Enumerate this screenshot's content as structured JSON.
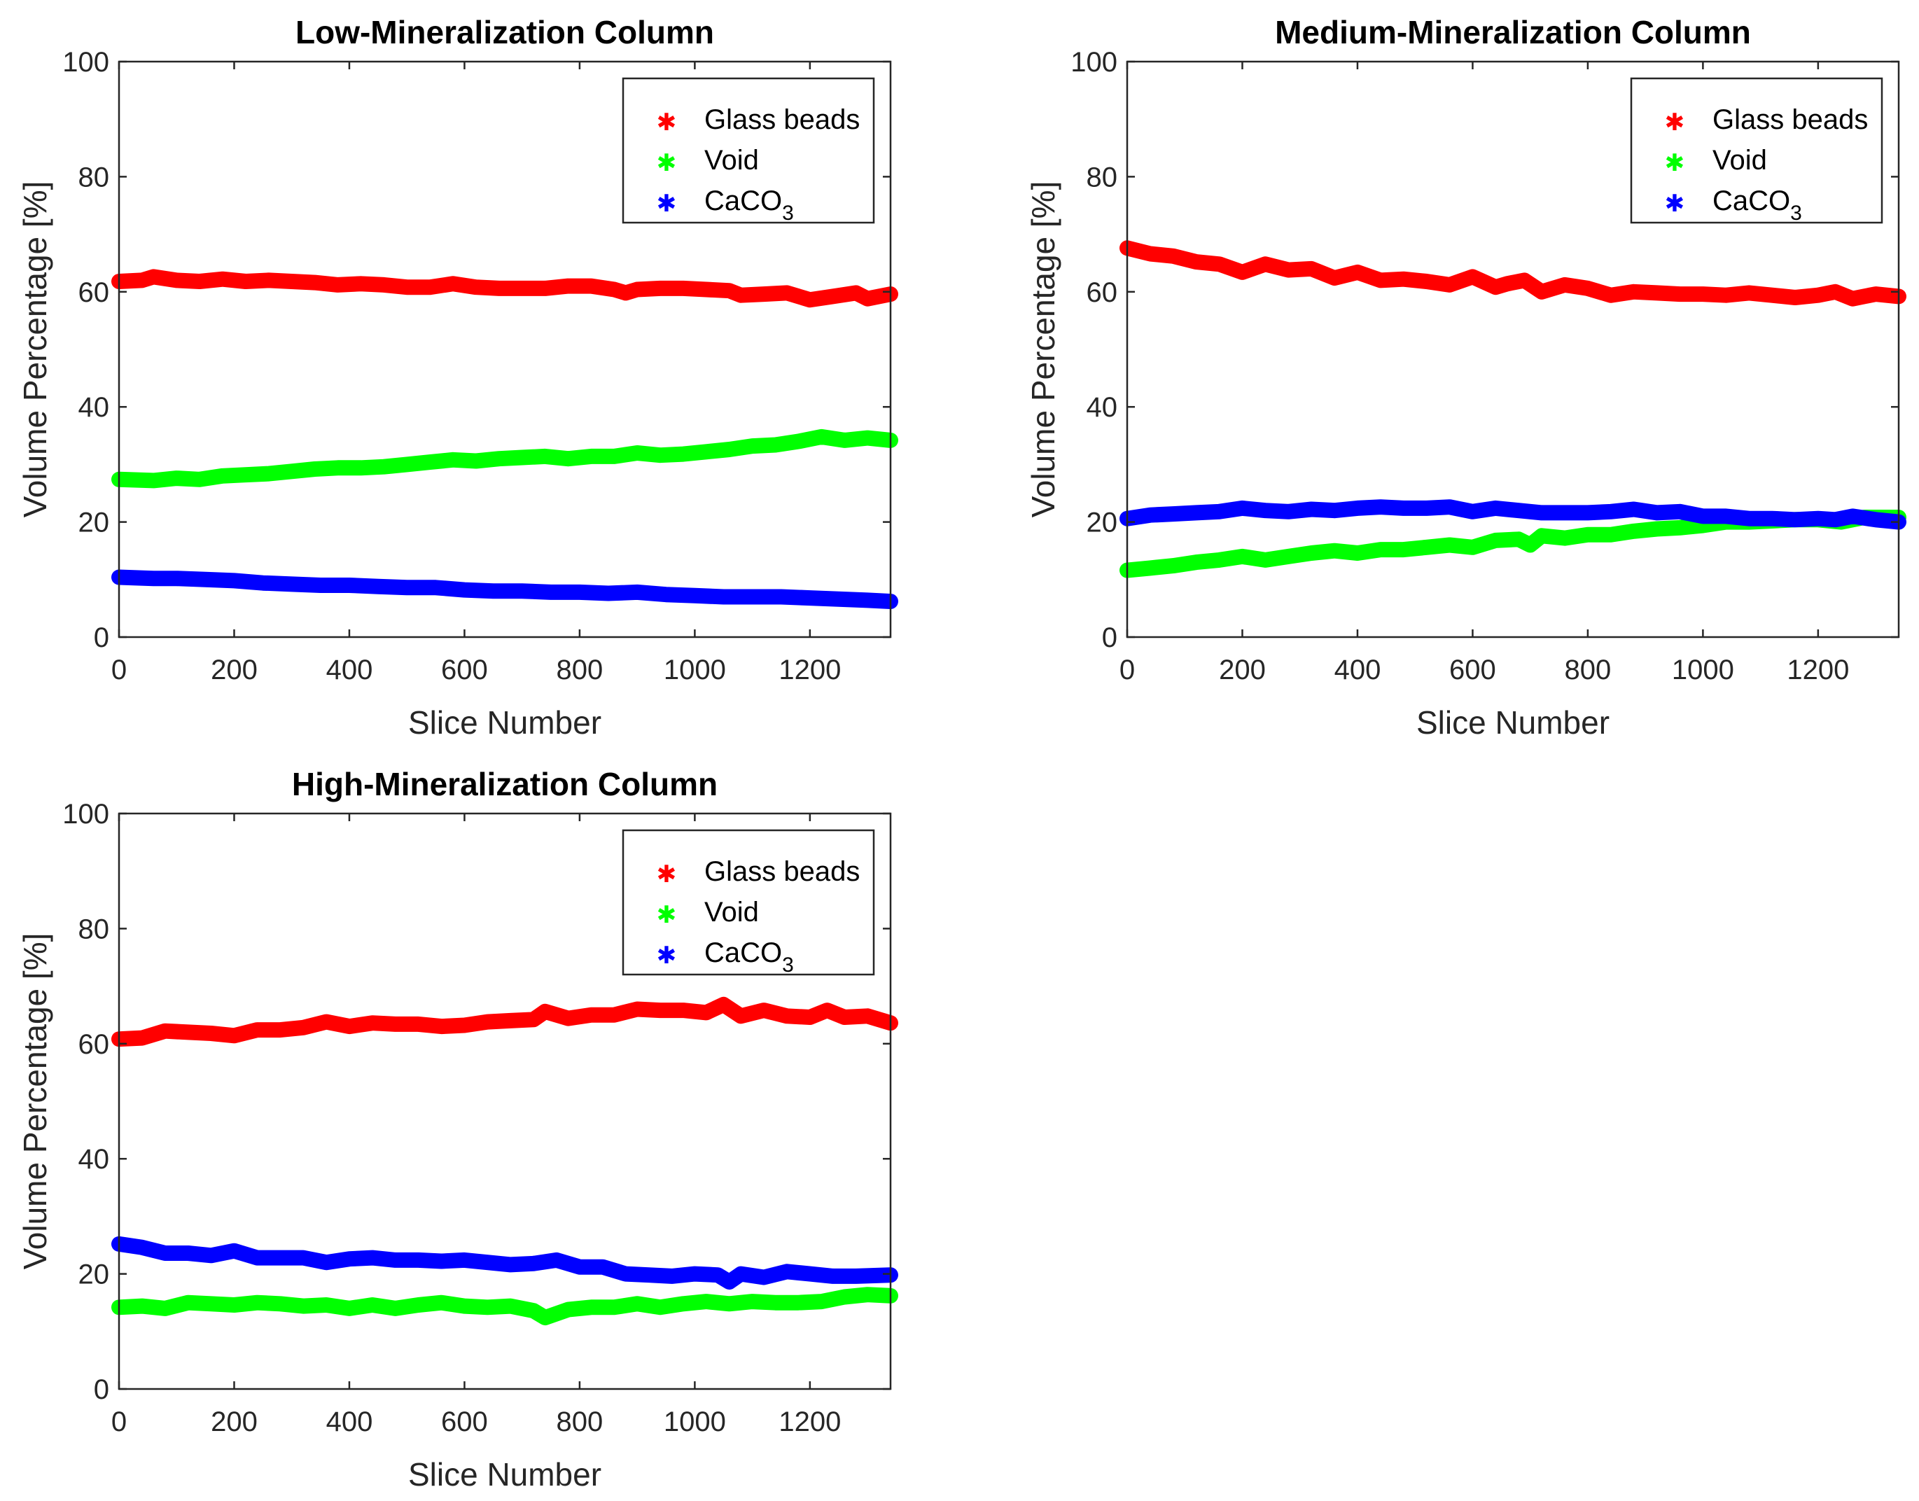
{
  "chart_data": [
    {
      "type": "scatter",
      "title": "Low-Mineralization Column",
      "xlabel": "Slice Number",
      "ylabel": "Volume Percentage [%]",
      "xlim": [
        0,
        1340
      ],
      "ylim": [
        0,
        100
      ],
      "xticks": [
        "0",
        "200",
        "400",
        "600",
        "800",
        "1000",
        "1200"
      ],
      "yticks": [
        "0",
        "20",
        "40",
        "60",
        "80",
        "100"
      ],
      "legend_position": "top-right",
      "series": [
        {
          "name": "Glass beads",
          "color": "#ff0000",
          "marker": "*",
          "x": [
            0,
            40,
            60,
            100,
            140,
            180,
            220,
            260,
            300,
            340,
            380,
            420,
            460,
            500,
            540,
            580,
            620,
            660,
            700,
            740,
            780,
            820,
            860,
            880,
            900,
            940,
            980,
            1020,
            1060,
            1080,
            1120,
            1160,
            1200,
            1240,
            1280,
            1300,
            1340
          ],
          "y": [
            61.8,
            62.0,
            62.6,
            62.0,
            61.8,
            62.2,
            61.8,
            62.0,
            61.8,
            61.6,
            61.2,
            61.4,
            61.2,
            60.8,
            60.8,
            61.4,
            60.8,
            60.6,
            60.6,
            60.6,
            61.0,
            61.0,
            60.4,
            59.8,
            60.4,
            60.6,
            60.6,
            60.4,
            60.2,
            59.4,
            59.6,
            59.8,
            58.6,
            59.2,
            59.8,
            58.8,
            59.6
          ]
        },
        {
          "name": "Void",
          "color": "#00ff00",
          "marker": "*",
          "x": [
            0,
            60,
            100,
            140,
            180,
            220,
            260,
            300,
            340,
            380,
            420,
            460,
            500,
            540,
            580,
            620,
            660,
            700,
            740,
            780,
            820,
            860,
            900,
            940,
            980,
            1020,
            1060,
            1100,
            1140,
            1180,
            1220,
            1260,
            1300,
            1340
          ],
          "y": [
            27.4,
            27.2,
            27.6,
            27.4,
            28.0,
            28.2,
            28.4,
            28.8,
            29.2,
            29.4,
            29.4,
            29.6,
            30.0,
            30.4,
            30.8,
            30.6,
            31.0,
            31.2,
            31.4,
            31.0,
            31.4,
            31.4,
            32.0,
            31.6,
            31.8,
            32.2,
            32.6,
            33.2,
            33.4,
            34.0,
            34.8,
            34.2,
            34.6,
            34.2
          ]
        },
        {
          "name": "CaCO₃",
          "color": "#0000ff",
          "marker": "*",
          "x": [
            0,
            60,
            100,
            150,
            200,
            250,
            300,
            350,
            400,
            450,
            500,
            550,
            600,
            650,
            700,
            750,
            800,
            850,
            900,
            950,
            1000,
            1050,
            1100,
            1150,
            1200,
            1250,
            1300,
            1340
          ],
          "y": [
            10.4,
            10.2,
            10.2,
            10.0,
            9.8,
            9.4,
            9.2,
            9.0,
            9.0,
            8.8,
            8.6,
            8.6,
            8.2,
            8.0,
            8.0,
            7.8,
            7.8,
            7.6,
            7.8,
            7.4,
            7.2,
            7.0,
            7.0,
            7.0,
            6.8,
            6.6,
            6.4,
            6.2
          ]
        }
      ],
      "legend": [
        "Glass beads",
        "Void",
        "CaCO",
        "3"
      ]
    },
    {
      "type": "scatter",
      "title": "Medium-Mineralization Column",
      "xlabel": "Slice Number",
      "ylabel": "Volume Percentage [%]",
      "xlim": [
        0,
        1340
      ],
      "ylim": [
        0,
        100
      ],
      "xticks": [
        "0",
        "200",
        "400",
        "600",
        "800",
        "1000",
        "1200"
      ],
      "yticks": [
        "0",
        "20",
        "40",
        "60",
        "80",
        "100"
      ],
      "legend_position": "top-right",
      "series": [
        {
          "name": "Glass beads",
          "color": "#ff0000",
          "marker": "*",
          "x": [
            0,
            40,
            80,
            120,
            160,
            200,
            240,
            280,
            320,
            360,
            400,
            440,
            480,
            520,
            560,
            600,
            640,
            660,
            690,
            720,
            760,
            800,
            840,
            880,
            920,
            960,
            1000,
            1040,
            1080,
            1120,
            1160,
            1200,
            1230,
            1260,
            1300,
            1340
          ],
          "y": [
            67.6,
            66.6,
            66.2,
            65.2,
            64.8,
            63.4,
            64.8,
            63.8,
            64.0,
            62.4,
            63.4,
            62.0,
            62.2,
            61.8,
            61.2,
            62.6,
            60.8,
            61.4,
            62.0,
            60.0,
            61.2,
            60.6,
            59.4,
            60.0,
            59.8,
            59.6,
            59.6,
            59.4,
            59.8,
            59.4,
            59.0,
            59.4,
            60.0,
            58.8,
            59.6,
            59.2
          ]
        },
        {
          "name": "Void",
          "color": "#00ff00",
          "marker": "*",
          "x": [
            0,
            40,
            80,
            120,
            160,
            200,
            240,
            280,
            320,
            360,
            400,
            440,
            480,
            520,
            560,
            600,
            640,
            680,
            700,
            720,
            760,
            800,
            840,
            880,
            920,
            960,
            1000,
            1040,
            1080,
            1120,
            1160,
            1200,
            1240,
            1280,
            1340
          ],
          "y": [
            11.6,
            12.0,
            12.4,
            13.0,
            13.4,
            14.0,
            13.4,
            14.0,
            14.6,
            15.0,
            14.6,
            15.2,
            15.2,
            15.6,
            16.0,
            15.6,
            16.8,
            17.0,
            16.0,
            17.6,
            17.2,
            17.8,
            17.8,
            18.4,
            18.8,
            19.0,
            19.4,
            20.0,
            20.0,
            20.2,
            20.4,
            20.4,
            20.0,
            20.8,
            20.8
          ]
        },
        {
          "name": "CaCO₃",
          "color": "#0000ff",
          "marker": "*",
          "x": [
            0,
            40,
            80,
            120,
            160,
            200,
            240,
            280,
            320,
            360,
            400,
            440,
            480,
            520,
            560,
            600,
            640,
            680,
            720,
            760,
            800,
            840,
            880,
            920,
            960,
            1000,
            1040,
            1080,
            1120,
            1160,
            1200,
            1230,
            1260,
            1300,
            1340
          ],
          "y": [
            20.6,
            21.2,
            21.4,
            21.6,
            21.8,
            22.4,
            22.0,
            21.8,
            22.2,
            22.0,
            22.4,
            22.6,
            22.4,
            22.4,
            22.6,
            21.8,
            22.4,
            22.0,
            21.6,
            21.6,
            21.6,
            21.8,
            22.2,
            21.6,
            21.8,
            21.0,
            21.0,
            20.6,
            20.6,
            20.4,
            20.6,
            20.4,
            21.0,
            20.4,
            20.0
          ]
        }
      ],
      "legend": [
        "Glass beads",
        "Void",
        "CaCO",
        "3"
      ]
    },
    {
      "type": "scatter",
      "title": "High-Mineralization Column",
      "xlabel": "Slice Number",
      "ylabel": "Volume Percentage [%]",
      "xlim": [
        0,
        1340
      ],
      "ylim": [
        0,
        100
      ],
      "xticks": [
        "0",
        "200",
        "400",
        "600",
        "800",
        "1000",
        "1200"
      ],
      "yticks": [
        "0",
        "20",
        "40",
        "60",
        "80",
        "100"
      ],
      "legend_position": "top-right",
      "series": [
        {
          "name": "Glass beads",
          "color": "#ff0000",
          "marker": "*",
          "x": [
            0,
            40,
            80,
            120,
            160,
            200,
            240,
            280,
            320,
            360,
            400,
            440,
            480,
            520,
            560,
            600,
            640,
            680,
            720,
            740,
            780,
            820,
            860,
            900,
            940,
            980,
            1020,
            1050,
            1080,
            1120,
            1160,
            1200,
            1230,
            1260,
            1300,
            1340
          ],
          "y": [
            60.8,
            61.0,
            62.2,
            62.0,
            61.8,
            61.4,
            62.4,
            62.4,
            62.8,
            63.8,
            63.0,
            63.6,
            63.4,
            63.4,
            63.0,
            63.2,
            63.8,
            64.0,
            64.2,
            65.6,
            64.4,
            65.0,
            65.0,
            66.0,
            65.8,
            65.8,
            65.4,
            66.8,
            64.8,
            65.8,
            64.8,
            64.6,
            65.8,
            64.6,
            64.8,
            63.6
          ]
        },
        {
          "name": "Void",
          "color": "#00ff00",
          "marker": "*",
          "x": [
            0,
            40,
            80,
            120,
            160,
            200,
            240,
            280,
            320,
            360,
            400,
            440,
            480,
            520,
            560,
            600,
            640,
            680,
            720,
            740,
            780,
            820,
            860,
            900,
            940,
            980,
            1020,
            1060,
            1100,
            1140,
            1180,
            1220,
            1260,
            1300,
            1340
          ],
          "y": [
            14.2,
            14.4,
            14.0,
            15.0,
            14.8,
            14.6,
            15.0,
            14.8,
            14.4,
            14.6,
            14.0,
            14.6,
            14.0,
            14.6,
            15.0,
            14.4,
            14.2,
            14.4,
            13.6,
            12.4,
            13.8,
            14.2,
            14.2,
            14.8,
            14.2,
            14.8,
            15.2,
            14.8,
            15.2,
            15.0,
            15.0,
            15.2,
            16.0,
            16.4,
            16.2
          ]
        },
        {
          "name": "CaCO₃",
          "color": "#0000ff",
          "marker": "*",
          "x": [
            0,
            40,
            80,
            120,
            160,
            200,
            240,
            280,
            320,
            360,
            400,
            440,
            480,
            520,
            560,
            600,
            640,
            680,
            720,
            760,
            800,
            840,
            880,
            920,
            960,
            1000,
            1040,
            1060,
            1080,
            1120,
            1160,
            1200,
            1240,
            1280,
            1340
          ],
          "y": [
            25.2,
            24.6,
            23.6,
            23.6,
            23.2,
            24.0,
            22.8,
            22.8,
            22.8,
            22.0,
            22.6,
            22.8,
            22.4,
            22.4,
            22.2,
            22.4,
            22.0,
            21.6,
            21.8,
            22.4,
            21.2,
            21.2,
            20.0,
            19.8,
            19.6,
            20.0,
            19.8,
            18.6,
            20.0,
            19.4,
            20.4,
            20.0,
            19.6,
            19.6,
            19.8
          ]
        }
      ],
      "legend": [
        "Glass beads",
        "Void",
        "CaCO",
        "3"
      ]
    }
  ]
}
